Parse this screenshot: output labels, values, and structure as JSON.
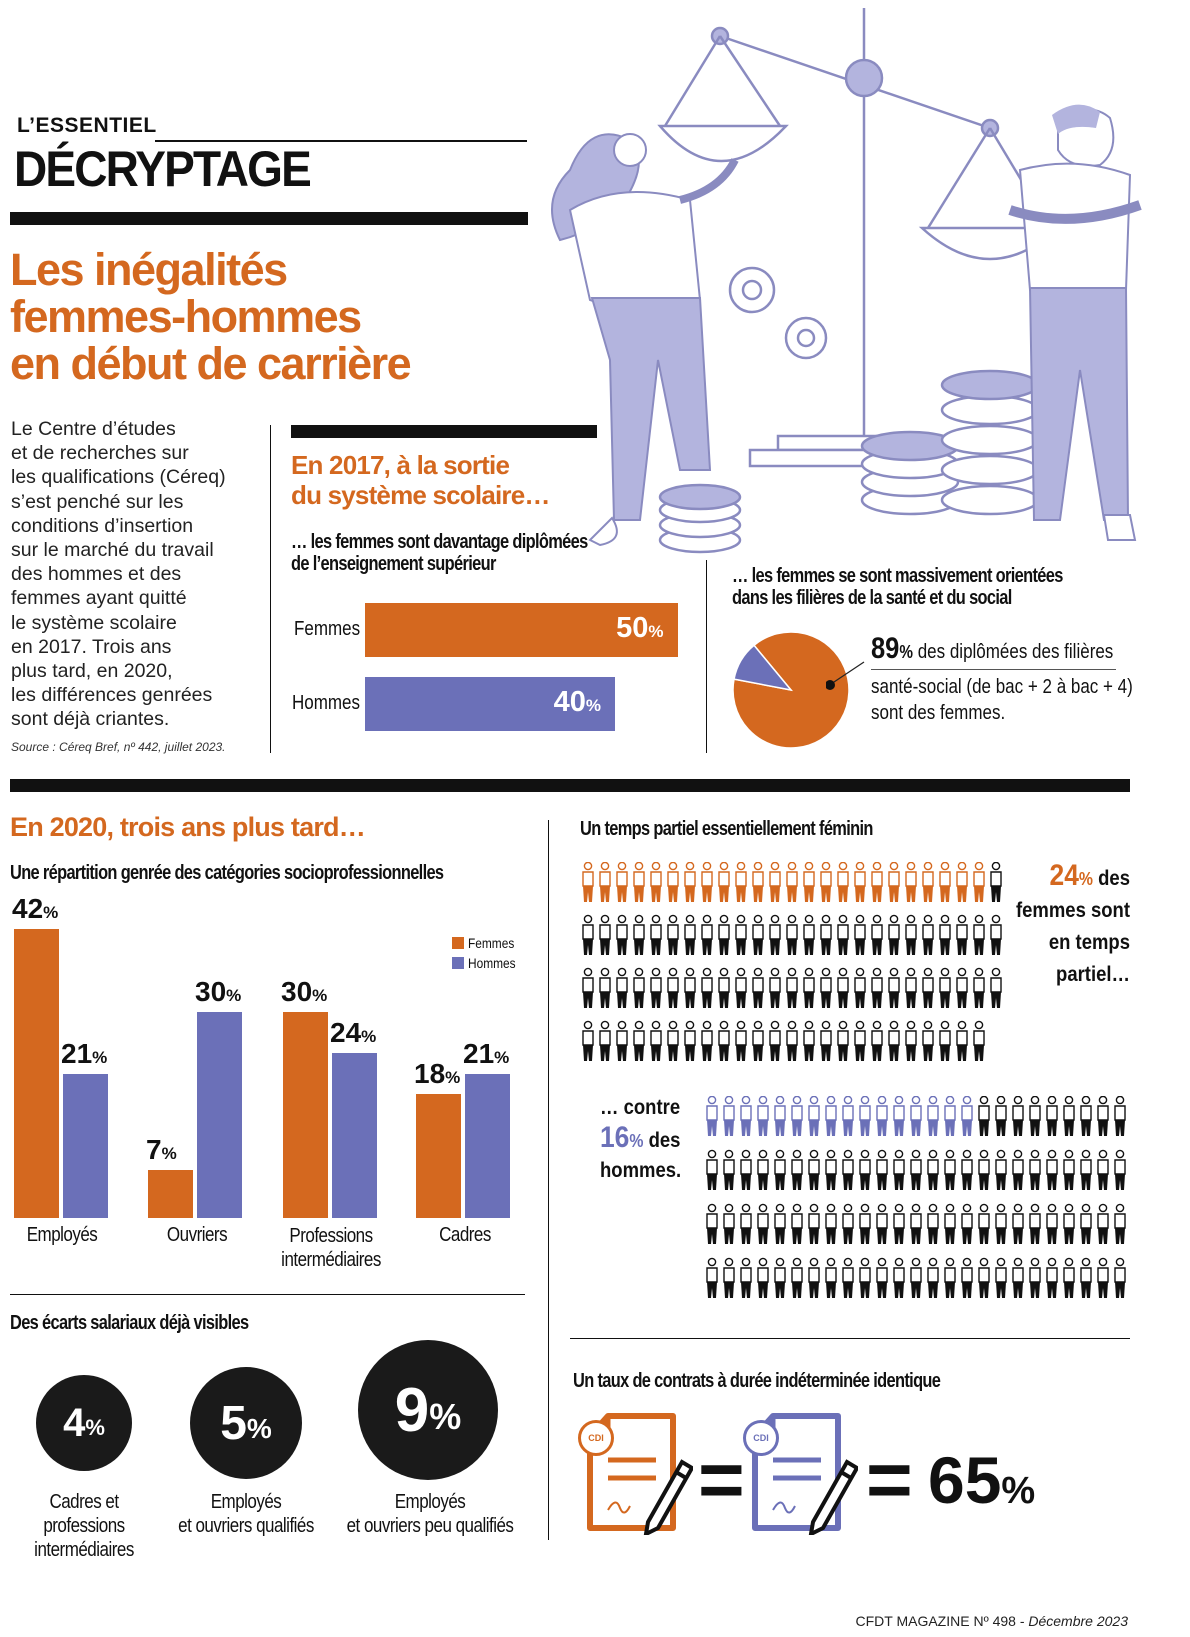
{
  "header": {
    "kicker": "L’ESSENTIEL",
    "section": "DÉCRYPTAGE",
    "title_lines": [
      "Les inégalités",
      "femmes-hommes",
      "en début de carrière"
    ]
  },
  "intro": {
    "lines": [
      "Le Centre d’études",
      "et de recherches sur",
      "les qualifications (Céreq)",
      "s’est penché sur les",
      "conditions d’insertion",
      "sur le marché du travail",
      "des hommes et des",
      "femmes ayant quitté",
      "le système scolaire",
      "en 2017. Trois ans",
      "plus tard, en 2020,",
      "les différences genrées",
      "sont déjà criantes."
    ],
    "source": "Source : Céreq Bref, nº 442, juillet 2023."
  },
  "section2017": {
    "heading_lines": [
      "En 2017, à la sortie",
      "du système scolaire…"
    ],
    "diploma": {
      "subtitle_lines": [
        "… les femmes sont davantage diplômées",
        "de l’enseignement supérieur"
      ],
      "chart_data": {
        "type": "bar",
        "orientation": "horizontal",
        "categories": [
          "Femmes",
          "Hommes"
        ],
        "values": [
          50,
          40
        ],
        "value_labels": [
          "50",
          "40"
        ],
        "unit": "%",
        "colors": [
          "#d4681f",
          "#6b70b8"
        ]
      }
    },
    "health": {
      "subtitle_lines": [
        "… les femmes se sont massivement orientées",
        "dans les filières de la santé et du social"
      ],
      "chart_data": {
        "type": "pie",
        "slices": [
          {
            "label": "femmes",
            "value": 89,
            "color": "#d4681f"
          },
          {
            "label": "hommes",
            "value": 11,
            "color": "#6b70b8"
          }
        ]
      },
      "stat_value": "89",
      "stat_unit": "%",
      "stat_text_1": " des diplômées des filières",
      "stat_text_2": "santé-social (de bac + 2 à bac + 4)",
      "stat_text_3": "sont des femmes."
    }
  },
  "section2020": {
    "heading": "En 2020, trois ans plus tard…",
    "csp": {
      "subtitle": "Une répartition genrée des catégories socioprofessionnelles",
      "legend": [
        "Femmes",
        "Hommes"
      ],
      "category_labels": [
        [
          "Employés"
        ],
        [
          "Ouvriers"
        ],
        [
          "Professions",
          "intermédiaires"
        ],
        [
          "Cadres"
        ]
      ],
      "chart_data": {
        "type": "bar",
        "categories": [
          "Employés",
          "Ouvriers",
          "Professions intermédiaires",
          "Cadres"
        ],
        "series": [
          {
            "name": "Femmes",
            "values": [
              42,
              7,
              30,
              18
            ],
            "color": "#d4681f"
          },
          {
            "name": "Hommes",
            "values": [
              21,
              30,
              24,
              21
            ],
            "color": "#6b70b8"
          }
        ],
        "unit": "%"
      }
    },
    "salary": {
      "subtitle": "Des écarts salariaux déjà visibles",
      "items": [
        {
          "value": "4",
          "unit": "%",
          "label_lines": [
            "Cadres et professions",
            "intermédiaires"
          ]
        },
        {
          "value": "5",
          "unit": "%",
          "label_lines": [
            "Employés",
            "et ouvriers qualifiés"
          ]
        },
        {
          "value": "9",
          "unit": "%",
          "label_lines": [
            "Employés",
            "et ouvriers peu qualifiés"
          ]
        }
      ]
    },
    "parttime": {
      "subtitle": "Un temps partiel essentiellement féminin",
      "women_value": "24",
      "women_unit": "%",
      "women_text_lines": [
        " des",
        "femmes sont",
        "en temps",
        "partiel…"
      ],
      "men_intro": "… contre",
      "men_value": "16",
      "men_unit": "%",
      "men_text_1": " des",
      "men_text_2": "hommes.",
      "icon_name": "person-icon"
    },
    "cdi": {
      "subtitle": "Un taux de contrats à durée indéterminée identique",
      "doc_badge": "CDI",
      "equals": "=",
      "value": "65",
      "unit": "%"
    }
  },
  "footer": {
    "magazine": "CFDT MAGAZINE Nº 498 - ",
    "date": "Décembre 2023"
  },
  "colors": {
    "orange": "#d4681f",
    "blue": "#6b70b8",
    "lavender": "#b3b4de",
    "black": "#111111"
  }
}
